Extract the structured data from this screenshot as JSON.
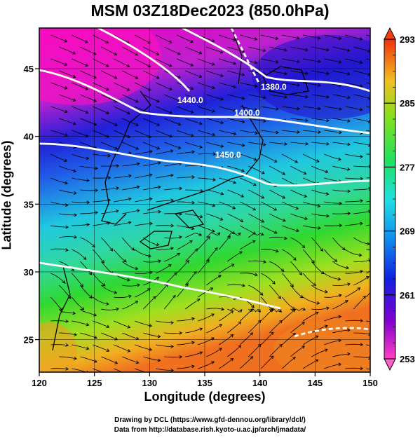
{
  "title": "MSM 03Z18Dec2023 (850.0hPa)",
  "x_axis": {
    "label": "Longitude (degrees)",
    "range": [
      120,
      150
    ],
    "ticks": [
      "120",
      "125",
      "130",
      "135",
      "140",
      "145",
      "150"
    ]
  },
  "y_axis": {
    "label": "Latitude  (degrees)",
    "range": [
      22.6,
      48
    ],
    "ticks": [
      "25",
      "30",
      "35",
      "40",
      "45"
    ]
  },
  "colorbar": {
    "range": [
      253,
      293
    ],
    "labels": [
      "293",
      "285",
      "277",
      "269",
      "261",
      "253"
    ]
  },
  "contours": [
    {
      "label": "1380.0"
    },
    {
      "label": "1400.0"
    },
    {
      "label": "1440.0"
    },
    {
      "label": "1450.0"
    }
  ],
  "credits": {
    "line1": "Drawing by DCL (https://www.gfd-dennou.org/library/dcl/)",
    "line2": "Data from http://database.rish.kyoto-u.ac.jp/arch/jmadata/"
  },
  "colors": {
    "cold": "#e000b0",
    "cool": "#1020d8",
    "mid": "#20e0d0",
    "mild": "#30d830",
    "warm": "#f0a020",
    "contour": "#ffffff"
  }
}
